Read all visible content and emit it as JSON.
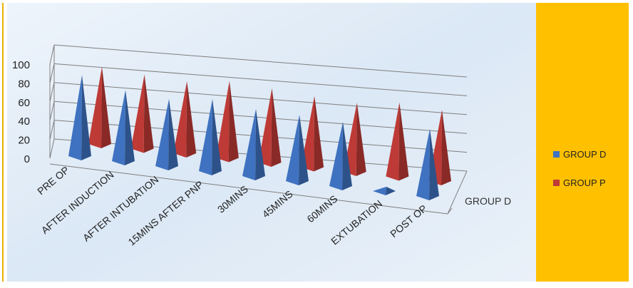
{
  "chart_data": {
    "type": "bar",
    "style": "3d-pyramid",
    "categories": [
      "PRE OP",
      "AFTER INDUCTION",
      "AFTER INTUBATION",
      "15MINS AFTER PNP",
      "30MINS",
      "45MINS",
      "60MINS",
      "EXTUBATION",
      "POST OP"
    ],
    "series": [
      {
        "name": "GROUP D",
        "color": "#3f72c0",
        "values": [
          82,
          72,
          68,
          73,
          68,
          67,
          65,
          5,
          68
        ]
      },
      {
        "name": "GROUP P",
        "color": "#be3a36",
        "values": [
          78,
          75,
          73,
          78,
          75,
          72,
          70,
          75,
          72
        ]
      }
    ],
    "yticks": [
      "0",
      "20",
      "40",
      "60",
      "80",
      "100"
    ],
    "ylim": [
      0,
      100
    ],
    "depth_label": "GROUP D",
    "grid": true,
    "legend_position": "right",
    "legend_background": "#ffc000"
  }
}
